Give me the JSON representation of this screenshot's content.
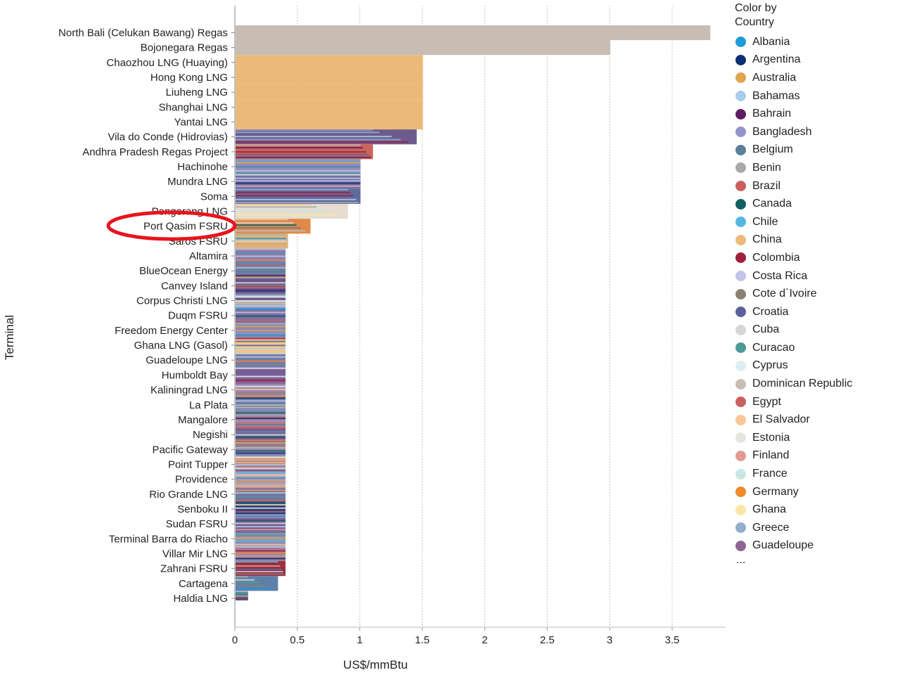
{
  "chart_data": {
    "type": "bar",
    "orientation": "horizontal",
    "xlabel": "US$/mmBtu",
    "ylabel": "Terminal",
    "xlim": [
      0,
      3.9
    ],
    "xticks": [
      0,
      0.5,
      1,
      1.5,
      2,
      2.5,
      3,
      3.5
    ],
    "xtick_labels": [
      "0",
      "0.5",
      "1",
      "1.5",
      "2",
      "2.5",
      "3",
      "3.5"
    ],
    "grid": "vertical-dotted",
    "legend_position": "right",
    "categories": [
      "North Bali (Celukan Bawang) Regas",
      "Bojonegara Regas",
      "Chaozhou LNG (Huaying)",
      "Hong Kong LNG",
      "Liuheng LNG",
      "Shanghai LNG",
      "Yantai LNG",
      "Vila do Conde (Hidrovias)",
      "Andhra Pradesh Regas Project",
      "Hachinohe",
      "Mundra LNG",
      "Soma",
      "Pengerang LNG",
      "Port Qasim FSRU",
      "Saros FSRU",
      "Altamira",
      "BlueOcean Energy",
      "Canvey Island",
      "Corpus Christi LNG",
      "Duqm FSRU",
      "Freedom Energy Center",
      "Ghana LNG (Gasol)",
      "Guadeloupe LNG",
      "Humboldt Bay",
      "Kaliningrad LNG",
      "La Plata",
      "Mangalore",
      "Negishi",
      "Pacific Gateway",
      "Point Tupper",
      "Providence",
      "Rio Grande LNG",
      "Senboku II",
      "Sudan FSRU",
      "Terminal Barra do Riacho",
      "Villar Mir LNG",
      "Zahrani FSRU",
      "Cartagena",
      "Haldia LNG"
    ],
    "values": [
      3.8,
      3.0,
      1.5,
      1.5,
      1.5,
      1.5,
      1.5,
      1.45,
      1.1,
      1.0,
      1.0,
      1.0,
      0.9,
      0.6,
      0.42,
      0.4,
      0.4,
      0.4,
      0.4,
      0.4,
      0.4,
      0.4,
      0.4,
      0.4,
      0.4,
      0.4,
      0.4,
      0.4,
      0.4,
      0.4,
      0.4,
      0.4,
      0.4,
      0.4,
      0.4,
      0.4,
      0.4,
      0.34,
      0.1
    ],
    "bar_colors": [
      "#c9bdb3",
      "#c9bdb3",
      "#ebba7a",
      "#ebba7a",
      "#ebba7a",
      "#ebba7a",
      "#ebba7a",
      "#6d5b8e",
      "#c9655a",
      "#8a8fbf",
      "#7b6ba0",
      "#5c6b9e",
      "#e6dcd0",
      "#e08a4a",
      "#d9b380",
      "#8f7ab0",
      "#6a7fa6",
      "#73508a",
      "#9aa5c0",
      "#7d6fa3",
      "#8a87b5",
      "#f2c88a",
      "#6f7db0",
      "#7f5d95",
      "#9c86ad",
      "#6b80a8",
      "#b07a8c",
      "#7a5a99",
      "#8a86b6",
      "#b58090",
      "#a4a4c4",
      "#7a72a3",
      "#2d3f80",
      "#7c5d96",
      "#9090b0",
      "#a57c9a",
      "#9a3040",
      "#5e80a8",
      "#3d6fa0"
    ],
    "annotation": {
      "type": "ellipse",
      "color": "#e8141c",
      "target": "Port Qasim FSRU"
    },
    "legend": {
      "title": "Color by Country",
      "items": [
        {
          "label": "Albania",
          "color": "#1f9bd8"
        },
        {
          "label": "Argentina",
          "color": "#0d2f73"
        },
        {
          "label": "Australia",
          "color": "#e0a552"
        },
        {
          "label": "Bahamas",
          "color": "#a9cce9"
        },
        {
          "label": "Bahrain",
          "color": "#5e1d63"
        },
        {
          "label": "Bangladesh",
          "color": "#9395c9"
        },
        {
          "label": "Belgium",
          "color": "#5b7f99"
        },
        {
          "label": "Benin",
          "color": "#a9a9a9"
        },
        {
          "label": "Brazil",
          "color": "#c9605f"
        },
        {
          "label": "Canada",
          "color": "#0f5f63"
        },
        {
          "label": "Chile",
          "color": "#54b7e3"
        },
        {
          "label": "China",
          "color": "#ebba7a"
        },
        {
          "label": "Colombia",
          "color": "#a01f3c"
        },
        {
          "label": "Costa Rica",
          "color": "#c0c4e5"
        },
        {
          "label": "Cote d`Ivoire",
          "color": "#8c7f74"
        },
        {
          "label": "Croatia",
          "color": "#5a629c"
        },
        {
          "label": "Cuba",
          "color": "#d6d6d6"
        },
        {
          "label": "Curacao",
          "color": "#4f9999"
        },
        {
          "label": "Cyprus",
          "color": "#ddeff3"
        },
        {
          "label": "Dominican Republic",
          "color": "#c9bdb3"
        },
        {
          "label": "Egypt",
          "color": "#c9605f"
        },
        {
          "label": "El Salvador",
          "color": "#f7c797"
        },
        {
          "label": "Estonia",
          "color": "#e5e4df"
        },
        {
          "label": "Finland",
          "color": "#e09a93"
        },
        {
          "label": "France",
          "color": "#c8e6e6"
        },
        {
          "label": "Germany",
          "color": "#f08a2a"
        },
        {
          "label": "Ghana",
          "color": "#fbe6a9"
        },
        {
          "label": "Greece",
          "color": "#92aecb"
        },
        {
          "label": "Guadeloupe",
          "color": "#8f6595"
        }
      ],
      "more": "..."
    }
  }
}
